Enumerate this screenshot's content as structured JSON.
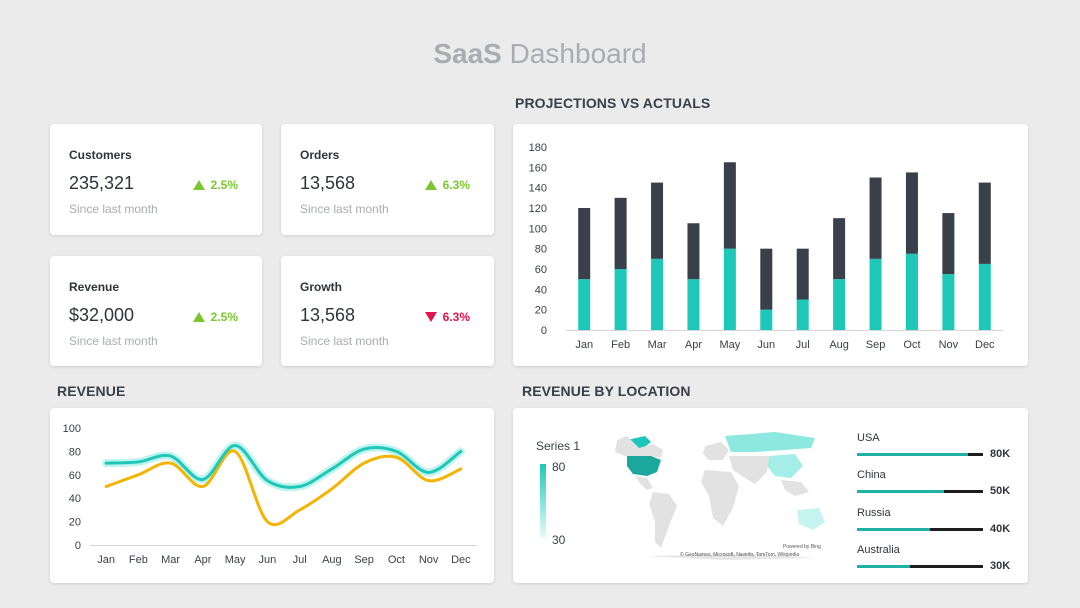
{
  "page": {
    "title_bold": "SaaS",
    "title_rest": "Dashboard"
  },
  "kpis": [
    {
      "label": "Customers",
      "value": "235,321",
      "change": "2.5%",
      "direction": "up",
      "since": "Since last month"
    },
    {
      "label": "Orders",
      "value": "13,568",
      "change": "6.3%",
      "direction": "up",
      "since": "Since last month"
    },
    {
      "label": "Revenue",
      "value": "$32,000",
      "change": "2.5%",
      "direction": "up",
      "since": "Since last month"
    },
    {
      "label": "Growth",
      "value": "13,568",
      "change": "6.3%",
      "direction": "down",
      "since": "Since last month"
    }
  ],
  "sections": {
    "projections": "PROJECTIONS VS ACTUALS",
    "revenue": "REVENUE",
    "location": "REVENUE BY LOCATION"
  },
  "colors": {
    "teal": "#1ec8b9",
    "dark": "#3a4049",
    "orange": "#f5b400",
    "up": "#7cc72f",
    "down": "#e0144c"
  },
  "chart_data": [
    {
      "type": "bar",
      "stacked": true,
      "categories": [
        "Jan",
        "Feb",
        "Mar",
        "Apr",
        "May",
        "Jun",
        "Jul",
        "Aug",
        "Sep",
        "Oct",
        "Nov",
        "Dec"
      ],
      "series": [
        {
          "values": [
            50,
            60,
            70,
            50,
            80,
            20,
            30,
            50,
            70,
            75,
            55,
            65
          ]
        },
        {
          "values": [
            70,
            70,
            75,
            55,
            85,
            60,
            50,
            60,
            80,
            80,
            60,
            80
          ]
        }
      ],
      "yticks": [
        0,
        20,
        40,
        60,
        80,
        100,
        120,
        140,
        160,
        180
      ],
      "ylim": [
        0,
        180
      ],
      "grid": false
    },
    {
      "type": "line",
      "categories": [
        "Jan",
        "Feb",
        "Mar",
        "Apr",
        "May",
        "Jun",
        "Jul",
        "Aug",
        "Sep",
        "Oct",
        "Nov",
        "Dec"
      ],
      "series": [
        {
          "values": [
            70,
            71,
            76,
            56,
            85,
            55,
            50,
            65,
            82,
            80,
            62,
            80
          ]
        },
        {
          "values": [
            50,
            60,
            70,
            50,
            80,
            20,
            30,
            48,
            70,
            75,
            55,
            65
          ]
        }
      ],
      "yticks": [
        0,
        20,
        40,
        60,
        80,
        100
      ],
      "ylim": [
        0,
        100
      ],
      "grid": false
    }
  ],
  "map": {
    "legend_title": "Series 1",
    "legend_max": "80",
    "legend_min": "30",
    "credit_top": "Powered by Bing",
    "credit_bottom": "© GeoNames, Microsoft, Navinfo, TomTom, Wikipedia",
    "locations": [
      {
        "name": "USA",
        "value": "80K",
        "share": 0.88
      },
      {
        "name": "China",
        "value": "50K",
        "share": 0.69
      },
      {
        "name": "Russia",
        "value": "40K",
        "share": 0.58
      },
      {
        "name": "Australia",
        "value": "30K",
        "share": 0.42
      }
    ]
  }
}
